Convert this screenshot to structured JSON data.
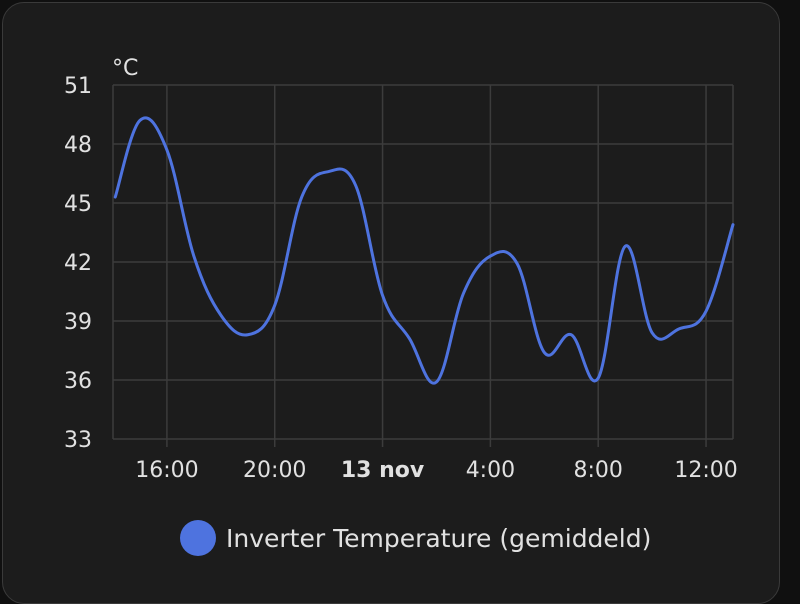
{
  "colors": {
    "series": "#4e73df",
    "grid": "#3c3c3c",
    "text": "#e1e1e1"
  },
  "chart_data": {
    "type": "line",
    "unit": "°C",
    "ylim": [
      33,
      51
    ],
    "yticks": [
      33,
      36,
      39,
      42,
      45,
      48,
      51
    ],
    "xlim": [
      "2023-11-12T14:00",
      "2023-11-13T13:00"
    ],
    "xticks": [
      {
        "label": "16:00",
        "t": "2023-11-12T16:00",
        "bold": false
      },
      {
        "label": "20:00",
        "t": "2023-11-12T20:00",
        "bold": false
      },
      {
        "label": "13 nov",
        "t": "2023-11-13T00:00",
        "bold": true
      },
      {
        "label": "4:00",
        "t": "2023-11-13T04:00",
        "bold": false
      },
      {
        "label": "8:00",
        "t": "2023-11-13T08:00",
        "bold": false
      },
      {
        "label": "12:00",
        "t": "2023-11-13T12:00",
        "bold": false
      }
    ],
    "grid": true,
    "legend_position": "bottom",
    "series": [
      {
        "name": "Inverter Temperature (gemiddeld)",
        "color": "#4e73df",
        "points": [
          [
            "2023-11-12T14:05",
            45.3
          ],
          [
            "2023-11-12T15:00",
            49.2
          ],
          [
            "2023-11-12T16:00",
            47.7
          ],
          [
            "2023-11-12T17:00",
            42.3
          ],
          [
            "2023-11-12T18:00",
            39.3
          ],
          [
            "2023-11-12T19:00",
            38.3
          ],
          [
            "2023-11-12T20:00",
            39.8
          ],
          [
            "2023-11-12T21:00",
            45.3
          ],
          [
            "2023-11-12T22:00",
            46.6
          ],
          [
            "2023-11-12T23:00",
            45.9
          ],
          [
            "2023-11-13T00:00",
            40.3
          ],
          [
            "2023-11-13T01:00",
            38.1
          ],
          [
            "2023-11-13T02:00",
            35.9
          ],
          [
            "2023-11-13T03:00",
            40.4
          ],
          [
            "2023-11-13T04:00",
            42.3
          ],
          [
            "2023-11-13T05:00",
            41.9
          ],
          [
            "2023-11-13T06:00",
            37.4
          ],
          [
            "2023-11-13T07:00",
            38.3
          ],
          [
            "2023-11-13T08:00",
            36.1
          ],
          [
            "2023-11-13T09:00",
            42.8
          ],
          [
            "2023-11-13T10:00",
            38.4
          ],
          [
            "2023-11-13T11:00",
            38.6
          ],
          [
            "2023-11-13T12:00",
            39.5
          ],
          [
            "2023-11-13T13:00",
            43.9
          ]
        ]
      }
    ]
  }
}
